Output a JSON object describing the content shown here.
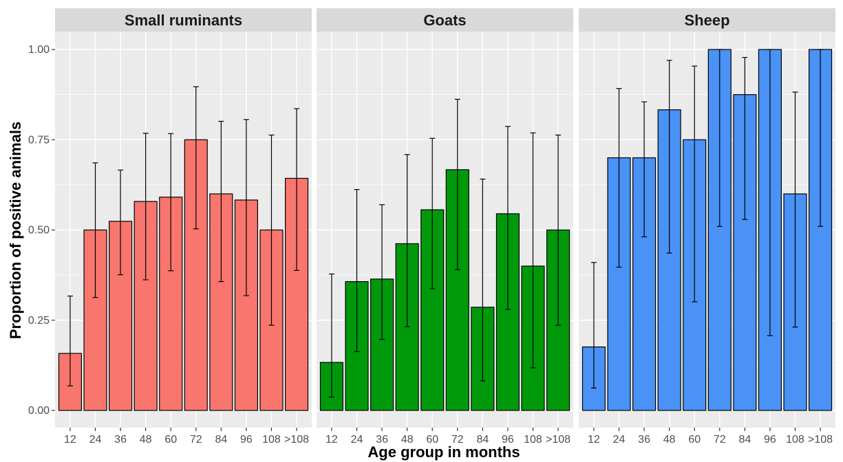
{
  "chart_data": {
    "type": "bar",
    "xlabel": "Age group in months",
    "ylabel": "Proportion of positive animals",
    "ylim": [
      0,
      1.05
    ],
    "yticks": [
      "0.00",
      "0.25",
      "0.50",
      "0.75",
      "1.00"
    ],
    "ytick_values": [
      0,
      0.25,
      0.5,
      0.75,
      1.0
    ],
    "categories": [
      "12",
      "24",
      "36",
      "48",
      "60",
      "72",
      "84",
      "96",
      "108",
      ">108"
    ],
    "grid": true,
    "legend": "none",
    "panels": [
      {
        "title": "Small ruminants",
        "color": "#F8766D",
        "values": [
          0.158,
          0.5,
          0.524,
          0.579,
          0.591,
          0.75,
          0.6,
          0.583,
          0.5,
          0.643
        ],
        "lower": [
          0.068,
          0.313,
          0.376,
          0.362,
          0.387,
          0.503,
          0.357,
          0.318,
          0.236,
          0.388
        ],
        "upper": [
          0.317,
          0.686,
          0.666,
          0.768,
          0.767,
          0.897,
          0.801,
          0.806,
          0.763,
          0.836
        ]
      },
      {
        "title": "Goats",
        "color": "#00990B",
        "values": [
          0.133,
          0.357,
          0.364,
          0.462,
          0.556,
          0.667,
          0.286,
          0.545,
          0.4,
          0.5
        ],
        "lower": [
          0.037,
          0.163,
          0.197,
          0.232,
          0.337,
          0.39,
          0.082,
          0.28,
          0.118,
          0.236
        ],
        "upper": [
          0.378,
          0.612,
          0.57,
          0.709,
          0.754,
          0.862,
          0.641,
          0.787,
          0.769,
          0.763
        ]
      },
      {
        "title": "Sheep",
        "color": "#4A92F5",
        "values": [
          0.176,
          0.7,
          0.7,
          0.833,
          0.75,
          1.0,
          0.875,
          1.0,
          0.6,
          1.0
        ],
        "lower": [
          0.062,
          0.397,
          0.481,
          0.436,
          0.301,
          0.51,
          0.529,
          0.207,
          0.231,
          0.51
        ],
        "upper": [
          0.41,
          0.892,
          0.855,
          0.97,
          0.954,
          1.0,
          0.978,
          1.0,
          0.882,
          1.0
        ]
      }
    ]
  }
}
